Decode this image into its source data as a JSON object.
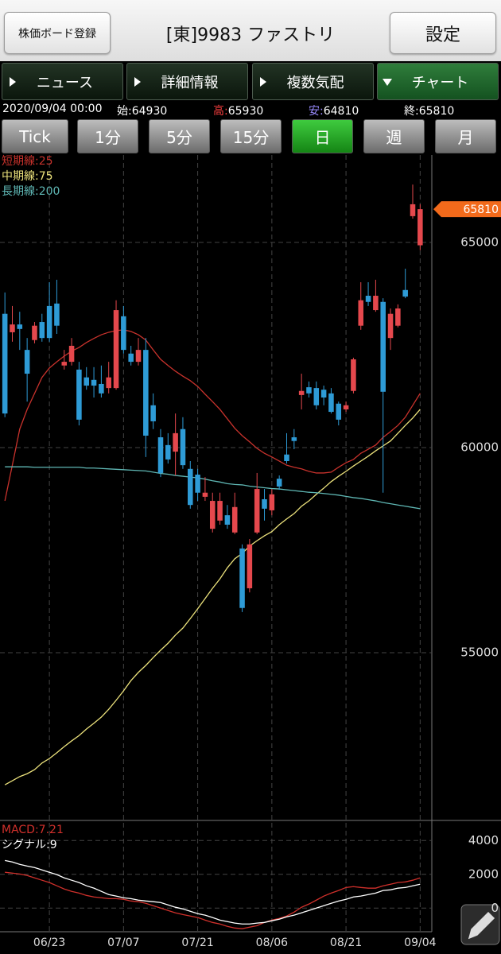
{
  "header": {
    "register_button": "株価ボード登録",
    "title": "[東]9983 ファストリ",
    "settings_button": "設定"
  },
  "tabs": [
    "ニュース",
    "詳細情報",
    "複数気配",
    "チャート"
  ],
  "info": [
    "2020/09/04 00:00",
    "始:64930",
    "高:65930",
    "安:64810",
    "終:65810"
  ],
  "periods": [
    "Tick",
    "1分",
    "5分",
    "15分",
    "日",
    "週",
    "月"
  ],
  "chart_data": [
    {
      "type": "candlestick",
      "categories": [
        null,
        null,
        null,
        null,
        null,
        null,
        "06/23",
        null,
        null,
        null,
        null,
        null,
        null,
        null,
        null,
        null,
        "07/07",
        null,
        null,
        null,
        null,
        null,
        null,
        null,
        null,
        null,
        "07/21",
        null,
        null,
        null,
        null,
        null,
        null,
        null,
        null,
        null,
        "08/06",
        null,
        null,
        null,
        null,
        null,
        null,
        null,
        null,
        null,
        "08/21",
        null,
        null,
        null,
        null,
        null,
        null,
        null,
        null,
        null,
        "09/04"
      ],
      "ohlc": {
        "open": [
          63260,
          62810,
          63000,
          62380,
          62620,
          63060,
          63450,
          63510,
          62000,
          62090,
          61900,
          61710,
          61650,
          61550,
          61450,
          61450,
          63200,
          62290,
          62090,
          62380,
          61030,
          60250,
          60060,
          59900,
          60450,
          59480,
          59340,
          58800,
          58020,
          58220,
          58350,
          57930,
          57540,
          56570,
          57930,
          58740,
          58470,
          59240,
          59830,
          60250,
          61280,
          61470,
          61450,
          61410,
          61320,
          61070,
          60930,
          61380,
          62970,
          63700,
          63350,
          63550,
          62670,
          62970,
          63840,
          65640,
          64930
        ],
        "high": [
          63780,
          63450,
          63310,
          62670,
          63060,
          63260,
          64030,
          64090,
          62380,
          62670,
          62090,
          61960,
          61960,
          62000,
          62090,
          63590,
          63450,
          62480,
          62670,
          62670,
          61320,
          60450,
          60350,
          60830,
          60740,
          59670,
          59480,
          59280,
          58900,
          58900,
          58600,
          58900,
          57640,
          57770,
          59380,
          58990,
          58990,
          59320,
          60350,
          60450,
          61800,
          61610,
          61610,
          61510,
          61450,
          61120,
          61120,
          62190,
          64030,
          64030,
          64090,
          63640,
          63390,
          63490,
          64360,
          66410,
          65930
        ],
        "low": [
          60740,
          62580,
          62380,
          61120,
          62540,
          62580,
          62580,
          62770,
          61900,
          62000,
          60540,
          61410,
          61220,
          61220,
          61320,
          61410,
          62290,
          62000,
          62000,
          59770,
          60450,
          59280,
          59610,
          59320,
          59480,
          58510,
          58700,
          58700,
          57930,
          58120,
          58020,
          57890,
          55990,
          56470,
          57890,
          58220,
          58350,
          58970,
          59610,
          59960,
          60930,
          61220,
          60930,
          61030,
          60830,
          60540,
          60870,
          61320,
          62870,
          63450,
          63310,
          58900,
          62380,
          62930,
          63640,
          65580,
          64810
        ],
        "close": [
          60830,
          63000,
          62890,
          61800,
          62970,
          62670,
          62670,
          62970,
          62090,
          62480,
          60680,
          61510,
          61510,
          61320,
          61710,
          63350,
          62380,
          62090,
          62380,
          60290,
          60640,
          59380,
          59710,
          60350,
          59570,
          58600,
          58900,
          58900,
          58700,
          58700,
          58120,
          58550,
          56090,
          57640,
          58990,
          58510,
          58860,
          59050,
          59670,
          60160,
          61380,
          61320,
          61030,
          61220,
          60870,
          60680,
          61030,
          62150,
          63590,
          63550,
          63700,
          61360,
          63260,
          63390,
          63680,
          65930,
          65810
        ]
      },
      "up_color": "#e5484d",
      "down_color": "#2e9bd6",
      "series": [
        {
          "name": "短期線:25",
          "color": "#c8322c",
          "values": [
            58700,
            59570,
            60450,
            60930,
            61320,
            61710,
            61940,
            62090,
            62230,
            62350,
            62440,
            62560,
            62660,
            62750,
            62810,
            62850,
            62870,
            62830,
            62750,
            62620,
            62380,
            62150,
            62000,
            61860,
            61740,
            61630,
            61490,
            61300,
            61120,
            60930,
            60700,
            60470,
            60290,
            60140,
            59980,
            59860,
            59770,
            59670,
            59570,
            59520,
            59480,
            59420,
            59380,
            59380,
            59400,
            59520,
            59630,
            59710,
            59860,
            59960,
            60060,
            60250,
            60390,
            60540,
            60740,
            61030,
            61320
          ]
        },
        {
          "name": "中期線:75",
          "color": "#ece27c",
          "values": [
            51780,
            51880,
            51980,
            52050,
            52150,
            52310,
            52420,
            52560,
            52710,
            52850,
            52980,
            53140,
            53280,
            53430,
            53620,
            53840,
            54070,
            54320,
            54520,
            54690,
            54880,
            55060,
            55230,
            55430,
            55600,
            55830,
            56070,
            56320,
            56570,
            56800,
            57070,
            57290,
            57420,
            57600,
            57730,
            57850,
            57950,
            58120,
            58260,
            58390,
            58570,
            58700,
            58860,
            59010,
            59170,
            59300,
            59420,
            59550,
            59670,
            59790,
            59920,
            60040,
            60160,
            60350,
            60540,
            60720,
            60930
          ]
        },
        {
          "name": "長期線:200",
          "color": "#5fb7b4",
          "values": [
            59530,
            59530,
            59530,
            59530,
            59520,
            59520,
            59520,
            59520,
            59520,
            59520,
            59520,
            59500,
            59500,
            59490,
            59480,
            59470,
            59460,
            59450,
            59440,
            59430,
            59400,
            59370,
            59350,
            59320,
            59300,
            59280,
            59260,
            59230,
            59190,
            59160,
            59120,
            59100,
            59090,
            59060,
            59040,
            59020,
            59000,
            58990,
            58970,
            58950,
            58930,
            58910,
            58900,
            58880,
            58860,
            58840,
            58810,
            58780,
            58760,
            58730,
            58700,
            58660,
            58630,
            58600,
            58570,
            58540,
            58510
          ]
        }
      ],
      "price_tag": 65810,
      "price_tag_color": "#f26a1b",
      "ylim": [
        50950,
        67130
      ],
      "yticks": [
        55000,
        60000,
        65000
      ],
      "grid": true,
      "legend": "upper left"
    },
    {
      "type": "line",
      "series": [
        {
          "name": "MACD:7.21",
          "color": "#d0302b",
          "values": [
            2120,
            2070,
            2020,
            1930,
            1790,
            1650,
            1510,
            1320,
            1130,
            990,
            890,
            750,
            660,
            610,
            560,
            560,
            520,
            420,
            380,
            280,
            140,
            0,
            -140,
            -280,
            -380,
            -470,
            -560,
            -710,
            -850,
            -940,
            -1080,
            -1180,
            -1220,
            -1130,
            -1040,
            -850,
            -710,
            -610,
            -470,
            -240,
            50,
            240,
            470,
            710,
            890,
            1040,
            1220,
            1270,
            1220,
            1180,
            1180,
            1320,
            1410,
            1510,
            1550,
            1650,
            1790
          ]
        },
        {
          "name": "シグナル:9",
          "color": "#ffffff",
          "values": [
            2820,
            2730,
            2590,
            2490,
            2400,
            2260,
            2120,
            1980,
            1790,
            1650,
            1510,
            1320,
            1180,
            990,
            800,
            710,
            610,
            560,
            470,
            420,
            380,
            330,
            190,
            50,
            -50,
            -190,
            -330,
            -420,
            -560,
            -710,
            -800,
            -890,
            -940,
            -940,
            -890,
            -850,
            -750,
            -660,
            -520,
            -420,
            -280,
            -140,
            0,
            140,
            280,
            420,
            520,
            660,
            710,
            800,
            890,
            1040,
            1080,
            1180,
            1220,
            1320,
            1410
          ]
        }
      ],
      "ylim": [
        -1400,
        5000
      ],
      "yticks": [
        0,
        2000,
        4000
      ],
      "grid": true,
      "legend": "upper left"
    }
  ]
}
